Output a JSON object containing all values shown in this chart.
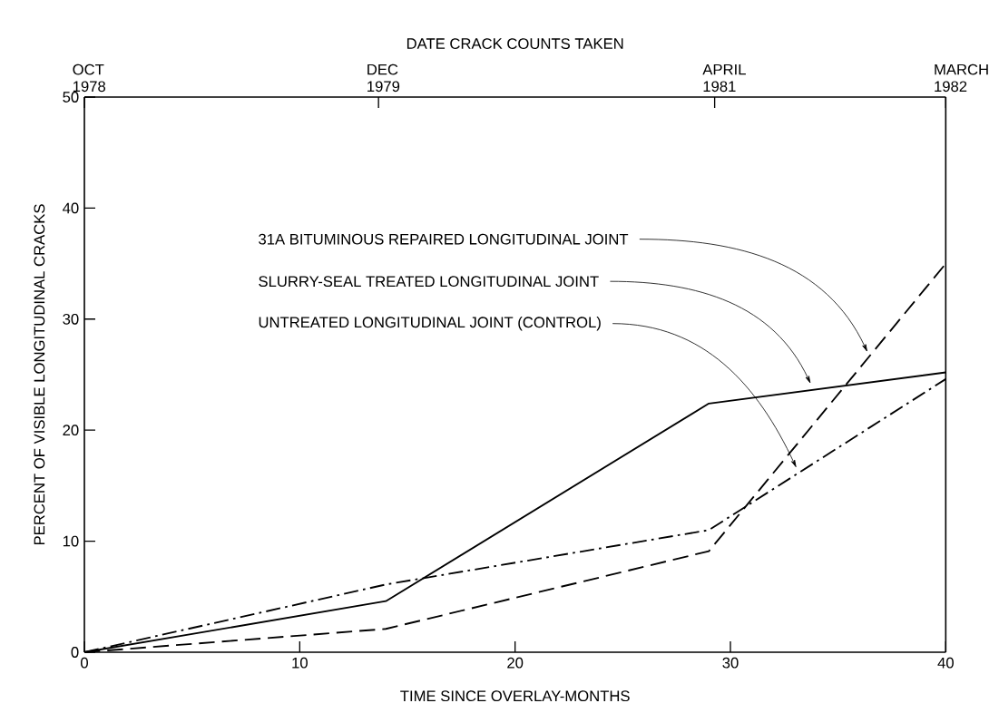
{
  "chart_data": {
    "type": "line",
    "xlabel": "TIME SINCE OVERLAY-MONTHS",
    "ylabel": "PERCENT OF VISIBLE LONGITUDINAL CRACKS",
    "x2label": "DATE CRACK COUNTS TAKEN",
    "x": [
      0,
      14,
      29,
      40
    ],
    "xlim": [
      0,
      40
    ],
    "xticks": [
      0,
      10,
      20,
      30,
      40
    ],
    "x2lim": [
      "1978-10",
      "1982-03"
    ],
    "x2ticks": [
      {
        "value": "1978-10",
        "label": "OCT 1978"
      },
      {
        "value": "1979-12",
        "label": "DEC 1979"
      },
      {
        "value": "1981-04",
        "label": "APRIL 1981"
      },
      {
        "value": "1982-03",
        "label": "MARCH 1982"
      }
    ],
    "ylim": [
      0,
      50
    ],
    "yticks": [
      0,
      10,
      20,
      30,
      40,
      50
    ],
    "marker": "none",
    "series": [
      {
        "color": "#000000",
        "line_style": "dashed",
        "values": [
          0,
          2.1,
          9.1,
          35
        ]
      },
      {
        "color": "#000000",
        "line_style": "solid",
        "values": [
          0,
          4.6,
          22.4,
          25.2
        ]
      },
      {
        "color": "#000000",
        "line_style": "dashdot",
        "values": [
          0,
          6.1,
          11,
          24.6
        ]
      }
    ],
    "annotations": [
      "31A BITUMINOUS REPAIRED LONGITUDINAL JOINT",
      "SLURRY-SEAL TREATED LONGITUDINAL JOINT",
      "UNTREATED LONGITUDINAL JOINT (CONTROL)"
    ]
  }
}
